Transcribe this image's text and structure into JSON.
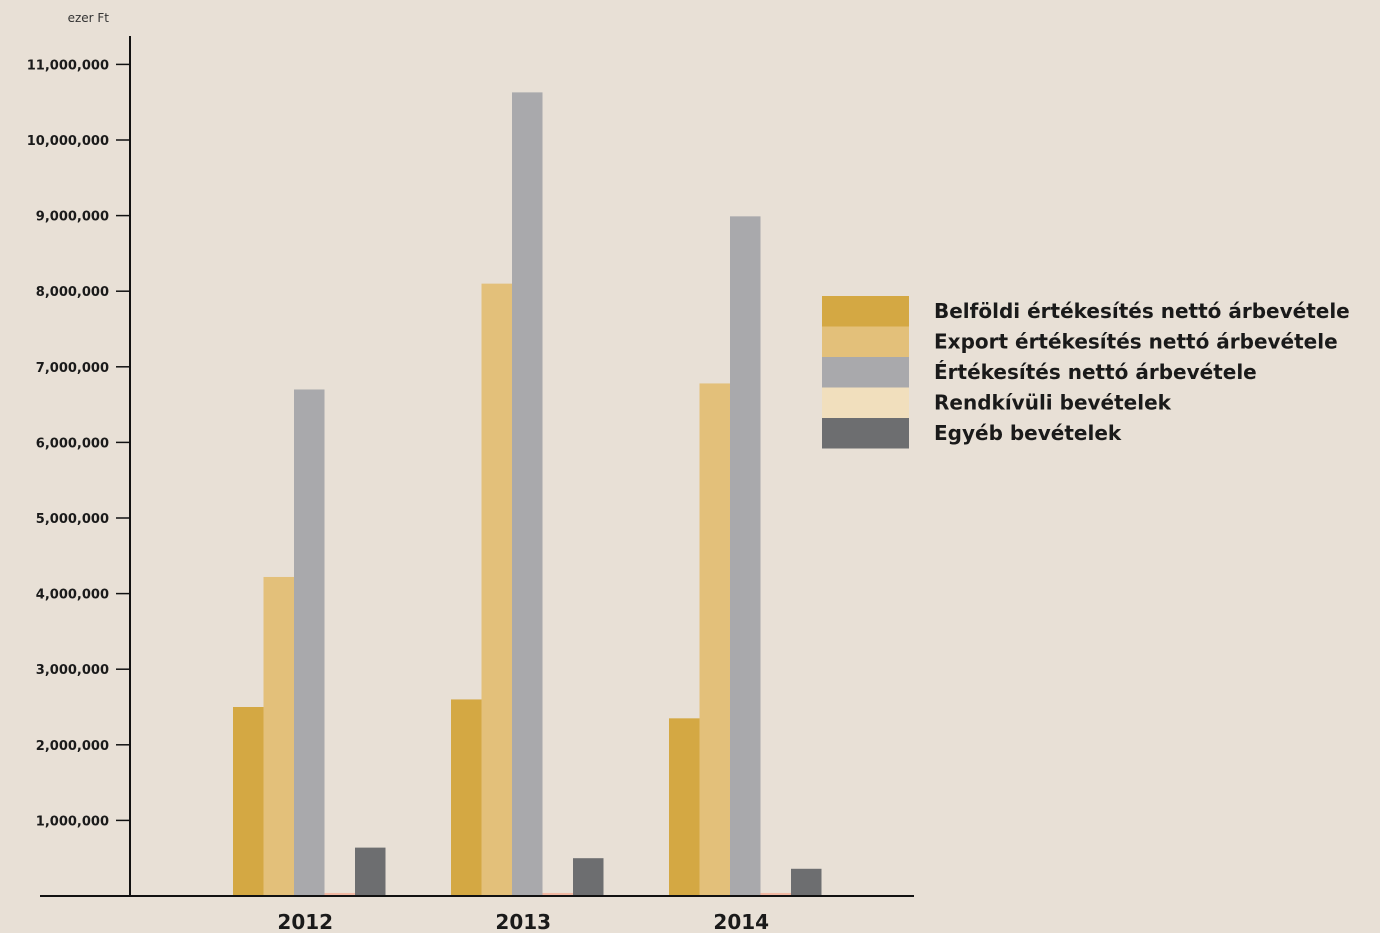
{
  "chart_data": {
    "type": "bar",
    "unit_label": "ezer Ft",
    "categories": [
      "2012",
      "2013",
      "2014"
    ],
    "ylim": [
      0,
      11500000
    ],
    "yticks": [
      1000000,
      2000000,
      3000000,
      4000000,
      5000000,
      6000000,
      7000000,
      8000000,
      9000000,
      10000000,
      11000000
    ],
    "ytick_labels": [
      "1,000,000",
      "2,000,000",
      "3,000,000",
      "4,000,000",
      "5,000,000",
      "6,000,000",
      "7,000,000",
      "8,000,000",
      "9,000,000",
      "10,000,000",
      "11,000,000"
    ],
    "grid": false,
    "legend_position": "right",
    "series": [
      {
        "name": "Belföldi értékesítés nettó árbevétele",
        "color": "#d4a843",
        "values": [
          2500000,
          2600000,
          2350000
        ]
      },
      {
        "name": "Export értékesítés nettó árbevétele",
        "color": "#e3c07a",
        "values": [
          4220000,
          8100000,
          6780000
        ]
      },
      {
        "name": "Értékesítés nettó árbevétele",
        "color": "#a9a9ac",
        "values": [
          6700000,
          10630000,
          8990000
        ]
      },
      {
        "name": "Rendkívüli bevételek",
        "color": "#f1dfbd",
        "values": [
          40000,
          40000,
          40000
        ]
      },
      {
        "name": "Egyéb bevételek",
        "color": "#6d6e70",
        "values": [
          640000,
          500000,
          360000
        ]
      }
    ]
  }
}
